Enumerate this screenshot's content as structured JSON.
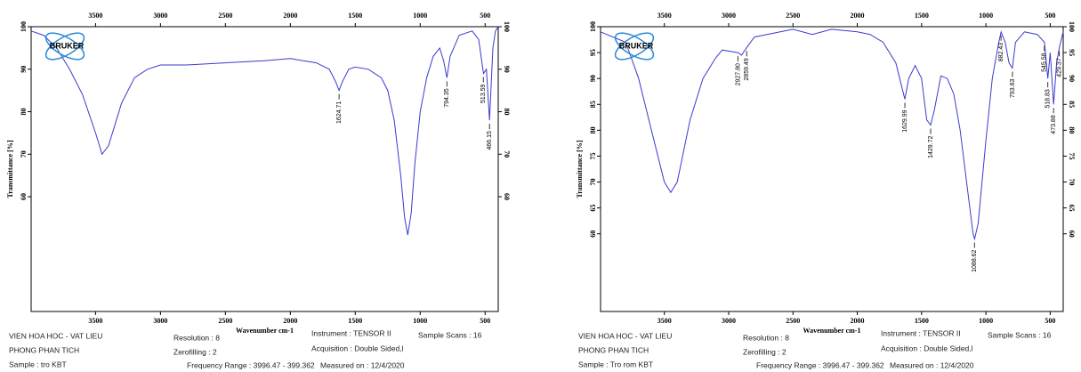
{
  "chart_data": [
    {
      "type": "line",
      "x_label": "Wavenumber cm-1",
      "y_label": "Transmittance [%]",
      "logo": "BRUKER",
      "color": "#3a3ad0",
      "xlim": [
        3996,
        399
      ],
      "ylim": [
        33,
        100
      ],
      "xticks": [
        3500,
        3000,
        2500,
        2000,
        1500,
        1000,
        500
      ],
      "yticks": [
        100,
        90,
        80,
        70,
        60
      ],
      "x": [
        3996,
        3900,
        3800,
        3700,
        3600,
        3500,
        3450,
        3400,
        3300,
        3200,
        3100,
        3000,
        2800,
        2500,
        2200,
        2000,
        1900,
        1800,
        1700,
        1650,
        1625,
        1600,
        1550,
        1500,
        1400,
        1300,
        1250,
        1200,
        1150,
        1120,
        1096,
        1070,
        1040,
        1000,
        950,
        900,
        850,
        820,
        794,
        770,
        700,
        600,
        550,
        513,
        490,
        466,
        440,
        420,
        399
      ],
      "values": [
        99,
        98,
        95,
        90,
        84,
        75,
        70,
        72,
        82,
        88,
        90,
        91,
        91,
        91.5,
        92,
        92.5,
        92,
        91.5,
        90,
        87,
        85,
        87,
        90,
        90.5,
        90,
        88,
        85,
        78,
        65,
        55,
        51,
        56,
        68,
        80,
        88,
        93,
        95,
        92,
        88,
        93,
        98,
        99,
        97,
        89,
        90,
        78,
        95,
        99,
        100
      ],
      "annotations": [
        {
          "x": 1624.71,
          "y": 85,
          "label": "1624.71"
        },
        {
          "x": 794.35,
          "y": 88,
          "label": "794.35"
        },
        {
          "x": 513.59,
          "y": 89,
          "label": "513.59"
        },
        {
          "x": 466.15,
          "y": 78,
          "label": "466.15"
        }
      ],
      "info": [
        "VIEN HOA HOC - VAT LIEU",
        "PHONG PHAN TICH",
        "Sample : tro KBT",
        "Resolution : 8",
        "Zerofilling : 2",
        "Frequency Range : 3996.47 - 399.362",
        "Instrument : TENSOR II",
        "Acquisition : Double Sided,l",
        "Sample Scans : 16",
        "Measured on : 12/4/2020"
      ]
    },
    {
      "type": "line",
      "x_label": "Wavenumber cm-1",
      "y_label": "Transmittance [%]",
      "logo": "BRUKER",
      "color": "#3a3ad0",
      "xlim": [
        3996,
        399
      ],
      "ylim": [
        45,
        100
      ],
      "xticks": [
        3500,
        3000,
        2500,
        2000,
        1500,
        1000,
        500
      ],
      "yticks": [
        100,
        95,
        90,
        85,
        80,
        75,
        70,
        65,
        60
      ],
      "x": [
        3996,
        3800,
        3700,
        3600,
        3500,
        3450,
        3400,
        3300,
        3200,
        3100,
        3050,
        2927,
        2900,
        2859,
        2800,
        2500,
        2350,
        2200,
        2000,
        1900,
        1800,
        1700,
        1630,
        1600,
        1550,
        1500,
        1460,
        1430,
        1400,
        1350,
        1300,
        1250,
        1200,
        1150,
        1100,
        1088,
        1060,
        1000,
        950,
        900,
        882,
        850,
        820,
        794,
        770,
        700,
        600,
        545,
        519,
        500,
        474,
        450,
        429,
        399
      ],
      "values": [
        99,
        97,
        90,
        80,
        70,
        68,
        70,
        82,
        90,
        94,
        95.5,
        95,
        94.5,
        96,
        98,
        99.5,
        98.5,
        99.5,
        99,
        98.5,
        97,
        93,
        86,
        90,
        92.5,
        90,
        82,
        81,
        84,
        90.5,
        90,
        87,
        80,
        70,
        60,
        59,
        62,
        78,
        90,
        97,
        99,
        97,
        93,
        92,
        97,
        99,
        98.5,
        97,
        90,
        95,
        85,
        93,
        96,
        99
      ],
      "annotations": [
        {
          "x": 2927.8,
          "y": 95,
          "label": "2927.80"
        },
        {
          "x": 2859.49,
          "y": 96,
          "label": "2859.49"
        },
        {
          "x": 1629.99,
          "y": 86,
          "label": "1629.99"
        },
        {
          "x": 1429.72,
          "y": 81,
          "label": "1429.72"
        },
        {
          "x": 1088.62,
          "y": 59,
          "label": "1088.62"
        },
        {
          "x": 882.43,
          "y": 99,
          "label": "882.43"
        },
        {
          "x": 793.63,
          "y": 92,
          "label": "793.63"
        },
        {
          "x": 545.58,
          "y": 97,
          "label": "545.58"
        },
        {
          "x": 518.83,
          "y": 90,
          "label": "518.83"
        },
        {
          "x": 473.88,
          "y": 85,
          "label": "473.88"
        },
        {
          "x": 429.37,
          "y": 96,
          "label": "429.37"
        }
      ],
      "info": [
        "VIEN HOA HOC - VAT LIEU",
        "PHONG PHAN TICH",
        "Sample : Tro rom KBT",
        "Resolution : 8",
        "Zerofilling : 2",
        "Frequency Range : 3996.47 - 399.362",
        "Instrument : TENSOR II",
        "Acquisition : Double Sided,l",
        "Sample Scans : 16",
        "Measured on : 12/4/2020"
      ]
    }
  ]
}
